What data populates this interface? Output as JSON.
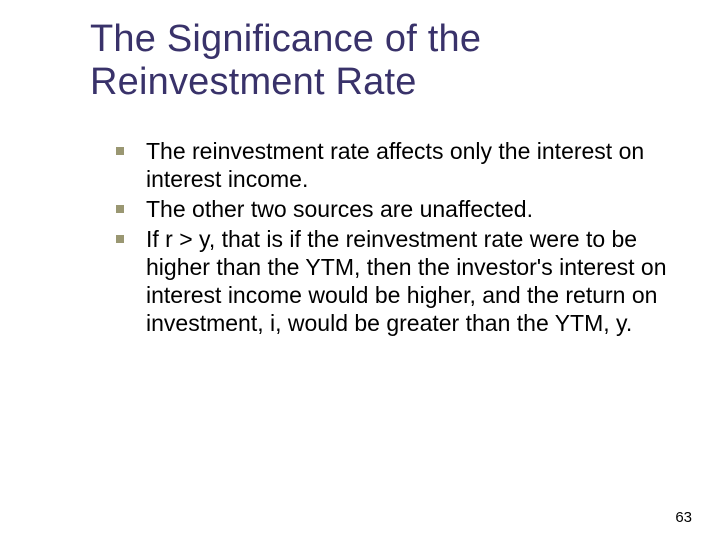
{
  "slide": {
    "title": "The Significance of the Reinvestment Rate",
    "title_color": "#39326a",
    "title_fontsize": 38,
    "body_fontsize": 23,
    "body_color": "#000000",
    "bullet_color": "#9a9772",
    "background_color": "#ffffff",
    "bullets": [
      "The reinvestment rate affects only the interest on interest income.",
      "The other two sources are unaffected.",
      "If r > y, that is if the reinvestment rate were to be higher than the YTM, then the investor's interest on interest income would be higher, and the return on investment, i, would be greater than the YTM, y."
    ],
    "page_number": "63"
  }
}
